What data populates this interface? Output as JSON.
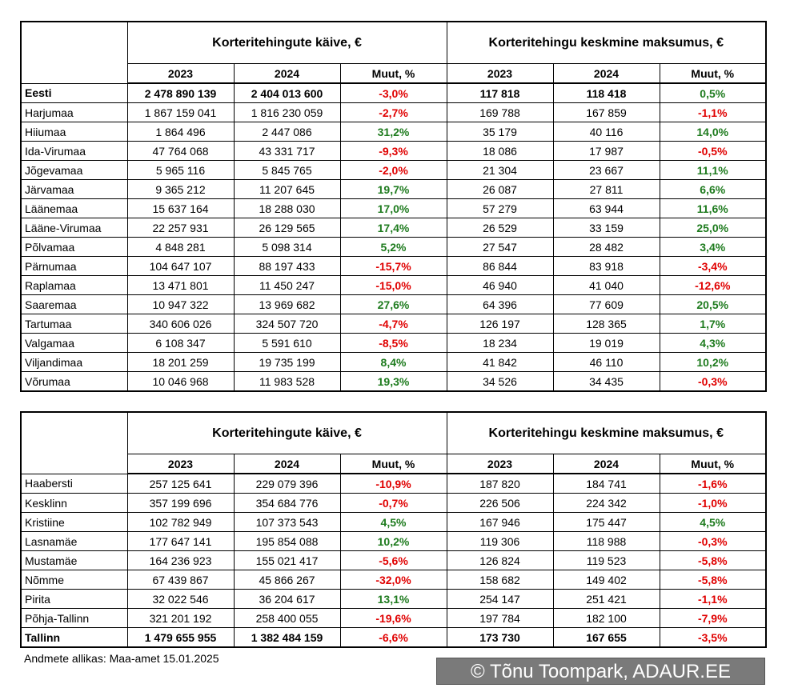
{
  "tables": [
    {
      "groups": [
        "Korteritehingute käive, €",
        "Korteritehingu keskmine maksumus, €"
      ],
      "columns": [
        "2023",
        "2024",
        "Muut, %",
        "2023",
        "2024",
        "Muut, %"
      ],
      "rows": [
        {
          "bold": true,
          "cells": [
            "Eesti",
            "2 478 890 139",
            "2 404 013 600",
            "-3,0%",
            "117 818",
            "118 418",
            "0,5%"
          ]
        },
        {
          "cells": [
            "Harjumaa",
            "1 867 159 041",
            "1 816 230 059",
            "-2,7%",
            "169 788",
            "167 859",
            "-1,1%"
          ]
        },
        {
          "cells": [
            "Hiiumaa",
            "1 864 496",
            "2 447 086",
            "31,2%",
            "35 179",
            "40 116",
            "14,0%"
          ]
        },
        {
          "cells": [
            "Ida-Virumaa",
            "47 764 068",
            "43 331 717",
            "-9,3%",
            "18 086",
            "17 987",
            "-0,5%"
          ]
        },
        {
          "cells": [
            "Jõgevamaa",
            "5 965 116",
            "5 845 765",
            "-2,0%",
            "21 304",
            "23 667",
            "11,1%"
          ]
        },
        {
          "cells": [
            "Järvamaa",
            "9 365 212",
            "11 207 645",
            "19,7%",
            "26 087",
            "27 811",
            "6,6%"
          ]
        },
        {
          "cells": [
            "Läänemaa",
            "15 637 164",
            "18 288 030",
            "17,0%",
            "57 279",
            "63 944",
            "11,6%"
          ]
        },
        {
          "cells": [
            "Lääne-Virumaa",
            "22 257 931",
            "26 129 565",
            "17,4%",
            "26 529",
            "33 159",
            "25,0%"
          ]
        },
        {
          "cells": [
            "Põlvamaa",
            "4 848 281",
            "5 098 314",
            "5,2%",
            "27 547",
            "28 482",
            "3,4%"
          ]
        },
        {
          "cells": [
            "Pärnumaa",
            "104 647 107",
            "88 197 433",
            "-15,7%",
            "86 844",
            "83 918",
            "-3,4%"
          ]
        },
        {
          "cells": [
            "Raplamaa",
            "13 471 801",
            "11 450 247",
            "-15,0%",
            "46 940",
            "41 040",
            "-12,6%"
          ]
        },
        {
          "cells": [
            "Saaremaa",
            "10 947 322",
            "13 969 682",
            "27,6%",
            "64 396",
            "77 609",
            "20,5%"
          ]
        },
        {
          "cells": [
            "Tartumaa",
            "340 606 026",
            "324 507 720",
            "-4,7%",
            "126 197",
            "128 365",
            "1,7%"
          ]
        },
        {
          "cells": [
            "Valgamaa",
            "6 108 347",
            "5 591 610",
            "-8,5%",
            "18 234",
            "19 019",
            "4,3%"
          ]
        },
        {
          "cells": [
            "Viljandimaa",
            "18 201 259",
            "19 735 199",
            "8,4%",
            "41 842",
            "46 110",
            "10,2%"
          ]
        },
        {
          "cells": [
            "Võrumaa",
            "10 046 968",
            "11 983 528",
            "19,3%",
            "34 526",
            "34 435",
            "-0,3%"
          ]
        }
      ]
    },
    {
      "groups": [
        "Korteritehingute käive, €",
        "Korteritehingu keskmine maksumus, €"
      ],
      "columns": [
        "2023",
        "2024",
        "Muut, %",
        "2023",
        "2024",
        "Muut, %"
      ],
      "rows": [
        {
          "cells": [
            "Haabersti",
            "257 125 641",
            "229 079 396",
            "-10,9%",
            "187 820",
            "184 741",
            "-1,6%"
          ]
        },
        {
          "cells": [
            "Kesklinn",
            "357 199 696",
            "354 684 776",
            "-0,7%",
            "226 506",
            "224 342",
            "-1,0%"
          ]
        },
        {
          "cells": [
            "Kristiine",
            "102 782 949",
            "107 373 543",
            "4,5%",
            "167 946",
            "175 447",
            "4,5%"
          ]
        },
        {
          "cells": [
            "Lasnamäe",
            "177 647 141",
            "195 854 088",
            "10,2%",
            "119 306",
            "118 988",
            "-0,3%"
          ]
        },
        {
          "cells": [
            "Mustamäe",
            "164 236 923",
            "155 021 417",
            "-5,6%",
            "126 824",
            "119 523",
            "-5,8%"
          ]
        },
        {
          "cells": [
            "Nõmme",
            "67 439 867",
            "45 866 267",
            "-32,0%",
            "158 682",
            "149 402",
            "-5,8%"
          ]
        },
        {
          "cells": [
            "Pirita",
            "32 022 546",
            "36 204 617",
            "13,1%",
            "254 147",
            "251 421",
            "-1,1%"
          ]
        },
        {
          "cells": [
            "Põhja-Tallinn",
            "321 201 192",
            "258 400 055",
            "-19,6%",
            "197 784",
            "182 100",
            "-7,9%"
          ]
        },
        {
          "bold": true,
          "cells": [
            "Tallinn",
            "1 479 655 955",
            "1 382 484 159",
            "-6,6%",
            "173 730",
            "167 655",
            "-3,5%"
          ]
        }
      ]
    }
  ],
  "source": "Andmete allikas: Maa-amet 15.01.2025",
  "watermark": "© Tõnu Toompark, ADAUR.EE",
  "colors": {
    "positive": "#1e7b1e",
    "negative": "#e00000"
  }
}
